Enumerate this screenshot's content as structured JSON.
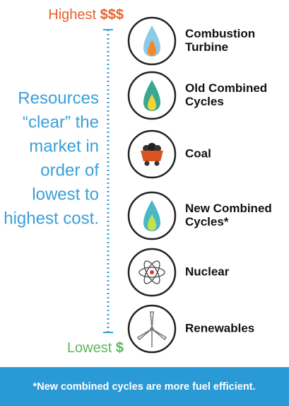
{
  "scale": {
    "top": {
      "label": "Highest",
      "symbol": "$$$"
    },
    "bottom": {
      "label": "Lowest",
      "symbol": "$"
    }
  },
  "description": [
    "Resources",
    "“clear” the",
    "market in",
    "order of",
    "lowest to",
    "highest cost."
  ],
  "resources": [
    {
      "name": [
        "Combustion",
        "Turbine"
      ]
    },
    {
      "name": [
        "Old Combined",
        "Cycles"
      ]
    },
    {
      "name": [
        "Coal"
      ]
    },
    {
      "name": [
        "New Combined",
        "Cycles*"
      ]
    },
    {
      "name": [
        "Nuclear"
      ]
    },
    {
      "name": [
        "Renewables"
      ]
    }
  ],
  "footnote": "*New combined cycles are more fuel efficient."
}
